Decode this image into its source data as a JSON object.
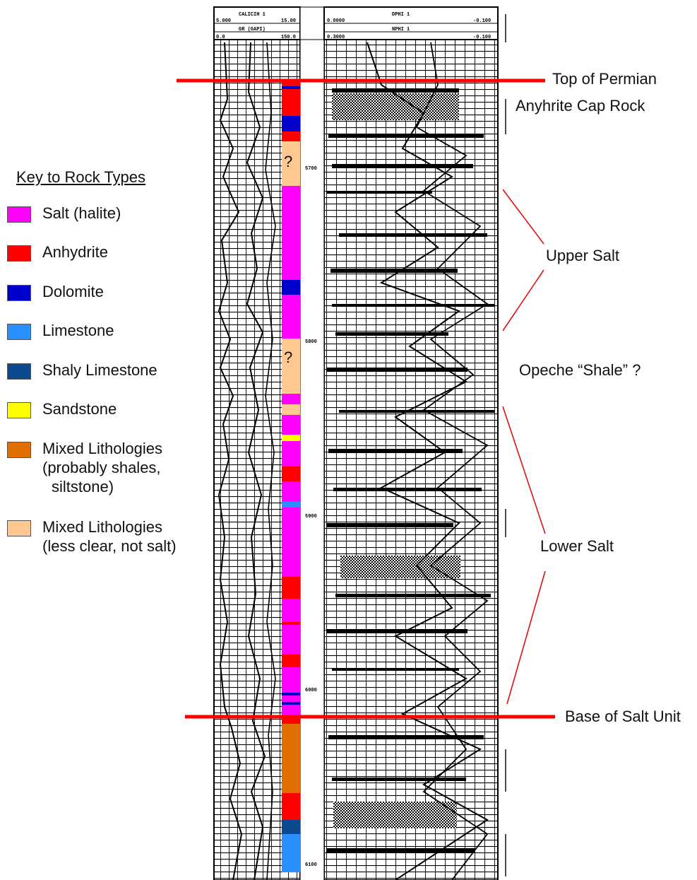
{
  "key": {
    "title": "Key to Rock Types",
    "items": [
      {
        "id": "salt",
        "color": "#ff00ff",
        "line1": "Salt (halite)"
      },
      {
        "id": "anhydrite",
        "color": "#ff0000",
        "line1": "Anhydrite"
      },
      {
        "id": "dolomite",
        "color": "#0000cc",
        "line1": "Dolomite"
      },
      {
        "id": "limestone",
        "color": "#2b90ff",
        "line1": "Limestone"
      },
      {
        "id": "shaly-limestone",
        "color": "#0b4a8f",
        "line1": "Shaly Limestone"
      },
      {
        "id": "sandstone",
        "color": "#ffff00",
        "line1": "Sandstone"
      },
      {
        "id": "mixed-shales",
        "color": "#e06f00",
        "line1": "Mixed Lithologies",
        "line2": "(probably shales,",
        "line3": "siltstone)"
      },
      {
        "id": "mixed-unclear",
        "color": "#ffc890",
        "line1": "Mixed Lithologies",
        "line2": "(less clear, not salt)"
      }
    ]
  },
  "annotations": {
    "top_permian": "Top of Permian",
    "cap_rock": "Anyhrite Cap Rock",
    "upper_salt": "Upper Salt",
    "opeche": "Opeche “Shale” ?",
    "lower_salt": "Lower Salt",
    "base_salt": "Base of Salt Unit"
  },
  "log_header": {
    "left_row1_a": "5.000",
    "left_row1_b": "CALICIH 1",
    "left_row1_c": "15.00",
    "left_row2": "GR (GAPI)",
    "left_row3_a": "0.0",
    "left_row3_b": "150.0",
    "right_row1_a": "0.0000",
    "right_row1_b": "DPHI 1",
    "right_row1_c": "-0.100",
    "right_row2": "NPHI 1",
    "right_row3_a": "0.3000",
    "right_row3_b": "-0.100"
  },
  "depth_labels": [
    "5700",
    "5800",
    "5900",
    "6000",
    "6100"
  ],
  "question_mark": "?",
  "lithology_column": [
    {
      "rock": "anhydrite",
      "from": 0.0,
      "to": 0.8
    },
    {
      "rock": "dolomite",
      "from": 0.8,
      "to": 1.2
    },
    {
      "rock": "anhydrite",
      "from": 1.2,
      "to": 5.0
    },
    {
      "rock": "dolomite",
      "from": 5.0,
      "to": 7.2
    },
    {
      "rock": "anhydrite",
      "from": 7.2,
      "to": 8.6
    },
    {
      "rock": "mixed-unclear",
      "from": 8.6,
      "to": 14.9,
      "q": true
    },
    {
      "rock": "salt",
      "from": 14.9,
      "to": 28.2
    },
    {
      "rock": "dolomite",
      "from": 28.2,
      "to": 30.3
    },
    {
      "rock": "salt",
      "from": 30.3,
      "to": 36.5
    },
    {
      "rock": "mixed-unclear",
      "from": 36.5,
      "to": 44.3,
      "q": true
    },
    {
      "rock": "salt",
      "from": 44.3,
      "to": 45.8
    },
    {
      "rock": "mixed-unclear",
      "from": 45.8,
      "to": 47.3
    },
    {
      "rock": "salt",
      "from": 47.3,
      "to": 50.1
    },
    {
      "rock": "sandstone",
      "from": 50.1,
      "to": 51.0
    },
    {
      "rock": "salt",
      "from": 51.0,
      "to": 54.6
    },
    {
      "rock": "anhydrite",
      "from": 54.6,
      "to": 56.7
    },
    {
      "rock": "salt",
      "from": 56.7,
      "to": 59.6
    },
    {
      "rock": "limestone",
      "from": 59.6,
      "to": 60.4
    },
    {
      "rock": "salt",
      "from": 60.4,
      "to": 70.2
    },
    {
      "rock": "anhydrite",
      "from": 70.2,
      "to": 73.3
    },
    {
      "rock": "salt",
      "from": 73.3,
      "to": 76.6
    },
    {
      "rock": "anhydrite",
      "from": 76.6,
      "to": 77.0
    },
    {
      "rock": "salt",
      "from": 77.0,
      "to": 81.2
    },
    {
      "rock": "anhydrite",
      "from": 81.2,
      "to": 83.0
    },
    {
      "rock": "salt",
      "from": 83.0,
      "to": 86.6
    },
    {
      "rock": "dolomite",
      "from": 86.6,
      "to": 87.0
    },
    {
      "rock": "salt",
      "from": 87.0,
      "to": 87.9
    },
    {
      "rock": "dolomite",
      "from": 87.9,
      "to": 88.3
    },
    {
      "rock": "salt",
      "from": 88.3,
      "to": 90.2
    },
    {
      "rock": "anhydrite",
      "from": 90.2,
      "to": 91.0
    },
    {
      "rock": "mixed-shales",
      "from": 91.0,
      "to": 100.8
    },
    {
      "rock": "anhydrite",
      "from": 100.8,
      "to": 104.6
    },
    {
      "rock": "shaly-limestone",
      "from": 104.6,
      "to": 106.6
    },
    {
      "rock": "limestone",
      "from": 106.6,
      "to": 112.0
    }
  ]
}
